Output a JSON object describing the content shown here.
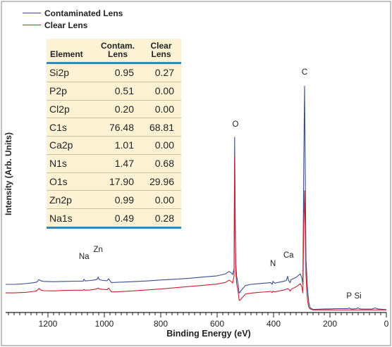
{
  "chart_data": {
    "type": "line",
    "xlabel": "Binding Energy (eV)",
    "ylabel": "Intensity (Arb. Units)",
    "xlim": [
      1350,
      0
    ],
    "x_ticks": [
      1200,
      1000,
      800,
      600,
      400,
      200,
      0
    ],
    "x_tick_labels": [
      "1200",
      "1000",
      "800",
      "600",
      "400",
      "200",
      "0"
    ],
    "legend_position": "top-left",
    "series": [
      {
        "name": "Contaminated Lens",
        "color": "#3a4d8f",
        "x": [
          1350,
          1320,
          1300,
          1280,
          1250,
          1240,
          1232,
          1228,
          1224,
          1215,
          1180,
          1140,
          1100,
          1075,
          1072,
          1068,
          1050,
          1035,
          1025,
          1022,
          1018,
          1005,
          990,
          985,
          980,
          975,
          960,
          900,
          850,
          800,
          750,
          700,
          650,
          600,
          570,
          558,
          550,
          545,
          540,
          538,
          536,
          534,
          531,
          528,
          525,
          522,
          520,
          515,
          500,
          480,
          460,
          440,
          420,
          410,
          405,
          402,
          398,
          395,
          380,
          365,
          355,
          350,
          347,
          344,
          341,
          338,
          320,
          305,
          300,
          296,
          293,
          290,
          287,
          285,
          282,
          279,
          275,
          270,
          260,
          250,
          235,
          230,
          220,
          200,
          180,
          160,
          140,
          135,
          132,
          128,
          125,
          120,
          105,
          101,
          97,
          90,
          70,
          50,
          40,
          30,
          20,
          10,
          0
        ],
        "y": [
          1.5,
          1.5,
          1.6,
          1.8,
          2.2,
          2.4,
          3.4,
          3.2,
          2.9,
          2.7,
          2.6,
          2.7,
          2.8,
          2.8,
          3.6,
          2.9,
          3.1,
          3.3,
          3.6,
          4.5,
          3.5,
          3.1,
          3.0,
          3.8,
          3.0,
          2.2,
          2.3,
          2.6,
          2.9,
          3.3,
          3.6,
          4.0,
          4.5,
          5.0,
          5.8,
          6.8,
          6.2,
          5.5,
          8.0,
          62.0,
          30.0,
          10.0,
          5.0,
          3.0,
          1.0,
          -2.0,
          -2.0,
          -1.0,
          1.0,
          1.5,
          1.7,
          1.9,
          2.1,
          2.2,
          1.5,
          2.7,
          2.2,
          2.0,
          2.4,
          2.7,
          3.1,
          4.8,
          3.2,
          2.6,
          2.2,
          3.4,
          4.4,
          5.8,
          4.2,
          1.5,
          50.0,
          83.0,
          40.0,
          12.0,
          5.0,
          -1.0,
          -6.0,
          -8.2,
          -8.8,
          -8.8,
          -8.7,
          -8.7,
          -8.6,
          -8.6,
          -8.5,
          -8.5,
          -8.5,
          -8.4,
          -8.2,
          -8.5,
          -8.6,
          -8.6,
          -8.5,
          -8.1,
          -8.5,
          -8.6,
          -8.7,
          -8.6,
          -8.2,
          -8.6,
          -8.7,
          -8.8,
          -8.9
        ]
      },
      {
        "name": "Clear Lens",
        "color": "#c9212e",
        "x": [
          1350,
          1320,
          1300,
          1280,
          1250,
          1240,
          1232,
          1228,
          1224,
          1215,
          1180,
          1140,
          1100,
          1075,
          1072,
          1068,
          1050,
          1035,
          1025,
          1022,
          1018,
          1005,
          990,
          985,
          980,
          975,
          960,
          900,
          850,
          800,
          750,
          700,
          650,
          600,
          570,
          558,
          550,
          545,
          540,
          538,
          536,
          534,
          531,
          528,
          525,
          522,
          520,
          515,
          500,
          480,
          460,
          440,
          420,
          410,
          405,
          402,
          398,
          395,
          380,
          365,
          355,
          350,
          347,
          344,
          341,
          338,
          320,
          305,
          300,
          296,
          293,
          290,
          287,
          285,
          282,
          279,
          275,
          270,
          260,
          250,
          235,
          230,
          220,
          200,
          180,
          160,
          140,
          135,
          132,
          128,
          125,
          120,
          105,
          101,
          97,
          90,
          70,
          50,
          40,
          30,
          20,
          10,
          0
        ],
        "y": [
          -2.0,
          -2.0,
          -1.9,
          -1.8,
          -1.4,
          -1.2,
          -0.2,
          -0.5,
          -0.9,
          -1.1,
          -1.2,
          -1.0,
          -0.9,
          -0.9,
          -0.6,
          -0.9,
          -0.8,
          -0.6,
          -0.3,
          0.0,
          -0.4,
          -0.6,
          -0.7,
          0.0,
          -0.8,
          -1.6,
          -1.6,
          -1.2,
          -0.8,
          -0.4,
          0.1,
          0.6,
          1.1,
          1.6,
          2.3,
          3.2,
          2.7,
          2.0,
          5.0,
          54.0,
          25.0,
          7.0,
          2.0,
          0.0,
          -2.0,
          -5.0,
          -5.1,
          -4.5,
          -2.5,
          -2.1,
          -1.9,
          -1.7,
          -1.5,
          -1.4,
          -1.9,
          -1.3,
          -1.5,
          -1.6,
          -1.2,
          -0.9,
          -0.5,
          -0.3,
          -0.4,
          -0.9,
          -1.3,
          -0.6,
          0.5,
          1.8,
          0.5,
          -2.0,
          25.0,
          40.0,
          18.0,
          5.0,
          -2.0,
          -5.5,
          -8.0,
          -8.6,
          -9.0,
          -9.0,
          -9.0,
          -9.0,
          -9.0,
          -9.0,
          -9.0,
          -9.0,
          -9.0,
          -9.0,
          -9.0,
          -9.0,
          -9.0,
          -9.0,
          -9.0,
          -9.0,
          -9.0,
          -9.0,
          -9.0,
          -9.0,
          -9.0,
          -9.0,
          -9.0,
          -9.0,
          -9.0
        ]
      }
    ],
    "annotations": [
      {
        "text": "C",
        "x": 290
      },
      {
        "text": "O",
        "x": 535
      },
      {
        "text": "Na",
        "x": 1072
      },
      {
        "text": "Zn",
        "x": 1022
      },
      {
        "text": "N",
        "x": 402
      },
      {
        "text": "Ca",
        "x": 347
      },
      {
        "text": "P",
        "x": 132
      },
      {
        "text": "Si",
        "x": 101
      }
    ],
    "table": {
      "headers": [
        "Element",
        "Contam.\nLens",
        "Clear\nLens"
      ],
      "rows": [
        [
          "Si2p",
          "0.95",
          "0.27"
        ],
        [
          "P2p",
          "0.51",
          "0.00"
        ],
        [
          "Cl2p",
          "0.20",
          "0.00"
        ],
        [
          "C1s",
          "76.48",
          "68.81"
        ],
        [
          "Ca2p",
          "1.01",
          "0.00"
        ],
        [
          "N1s",
          "1.47",
          "0.68"
        ],
        [
          "O1s",
          "17.90",
          "29.96"
        ],
        [
          "Zn2p",
          "0.99",
          "0.00"
        ],
        [
          "Na1s",
          "0.49",
          "0.28"
        ]
      ]
    }
  }
}
